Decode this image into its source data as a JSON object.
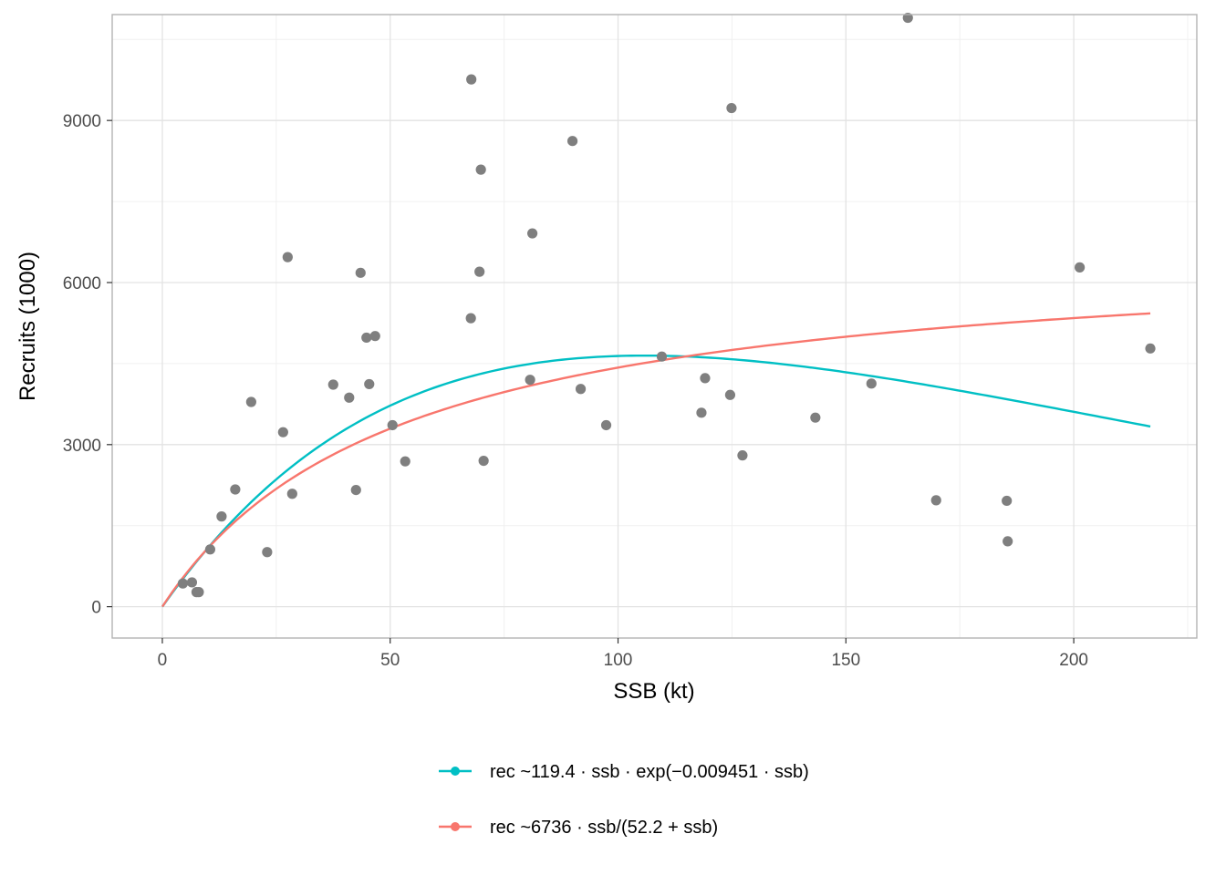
{
  "chart_data": {
    "type": "scatter",
    "xlabel": "SSB (kt)",
    "ylabel": "Recruits (1000)",
    "xlim": [
      -11,
      227
    ],
    "ylim": [
      -580,
      10960
    ],
    "x_ticks": [
      0,
      50,
      100,
      150,
      200
    ],
    "y_ticks": [
      0,
      3000,
      6000,
      9000
    ],
    "x_tick_labels": [
      "0",
      "50",
      "100",
      "150",
      "200"
    ],
    "y_tick_labels": [
      "0",
      "3000",
      "6000",
      "9000"
    ],
    "grid": true,
    "legend_position": "bottom",
    "points": {
      "color": "#7f7f7f",
      "x": [
        4.5,
        6.5,
        7.5,
        8,
        10.5,
        13,
        16,
        19.5,
        23,
        26.5,
        27.5,
        28.5,
        37.5,
        41,
        42.5,
        43.5,
        44.8,
        45.4,
        46.7,
        50.5,
        53.3,
        67.7,
        67.8,
        69.6,
        69.9,
        70.5,
        80.7,
        81.2,
        90,
        91.8,
        97.4,
        109.6,
        118.3,
        119.1,
        124.6,
        124.9,
        127.3,
        143.3,
        155.6,
        163.6,
        169.8,
        185.3,
        185.5,
        201.3,
        216.8
      ],
      "y": [
        430,
        450,
        270,
        270,
        1060,
        1670,
        2170,
        3790,
        1010,
        3230,
        6470,
        2090,
        4110,
        3870,
        2160,
        6180,
        4980,
        4120,
        5010,
        3360,
        2690,
        5340,
        9760,
        6200,
        8090,
        2700,
        4200,
        6910,
        8620,
        4030,
        3360,
        4630,
        3590,
        4230,
        3920,
        9230,
        2800,
        3500,
        4130,
        10900,
        1970,
        1960,
        1210,
        6280,
        4780
      ]
    },
    "series": [
      {
        "name": "rec ~119.4 · ssb · exp(−0.009451 · ssb)",
        "color": "#00bfc4",
        "model": "ricker",
        "a": 119.4,
        "b": 0.009451,
        "x_range": [
          0,
          216.8
        ]
      },
      {
        "name": "rec ~6736 · ssb/(52.2 + ssb)",
        "color": "#f8766d",
        "model": "beverton-holt",
        "a": 6736,
        "b": 52.2,
        "x_range": [
          0,
          216.8
        ]
      }
    ]
  }
}
